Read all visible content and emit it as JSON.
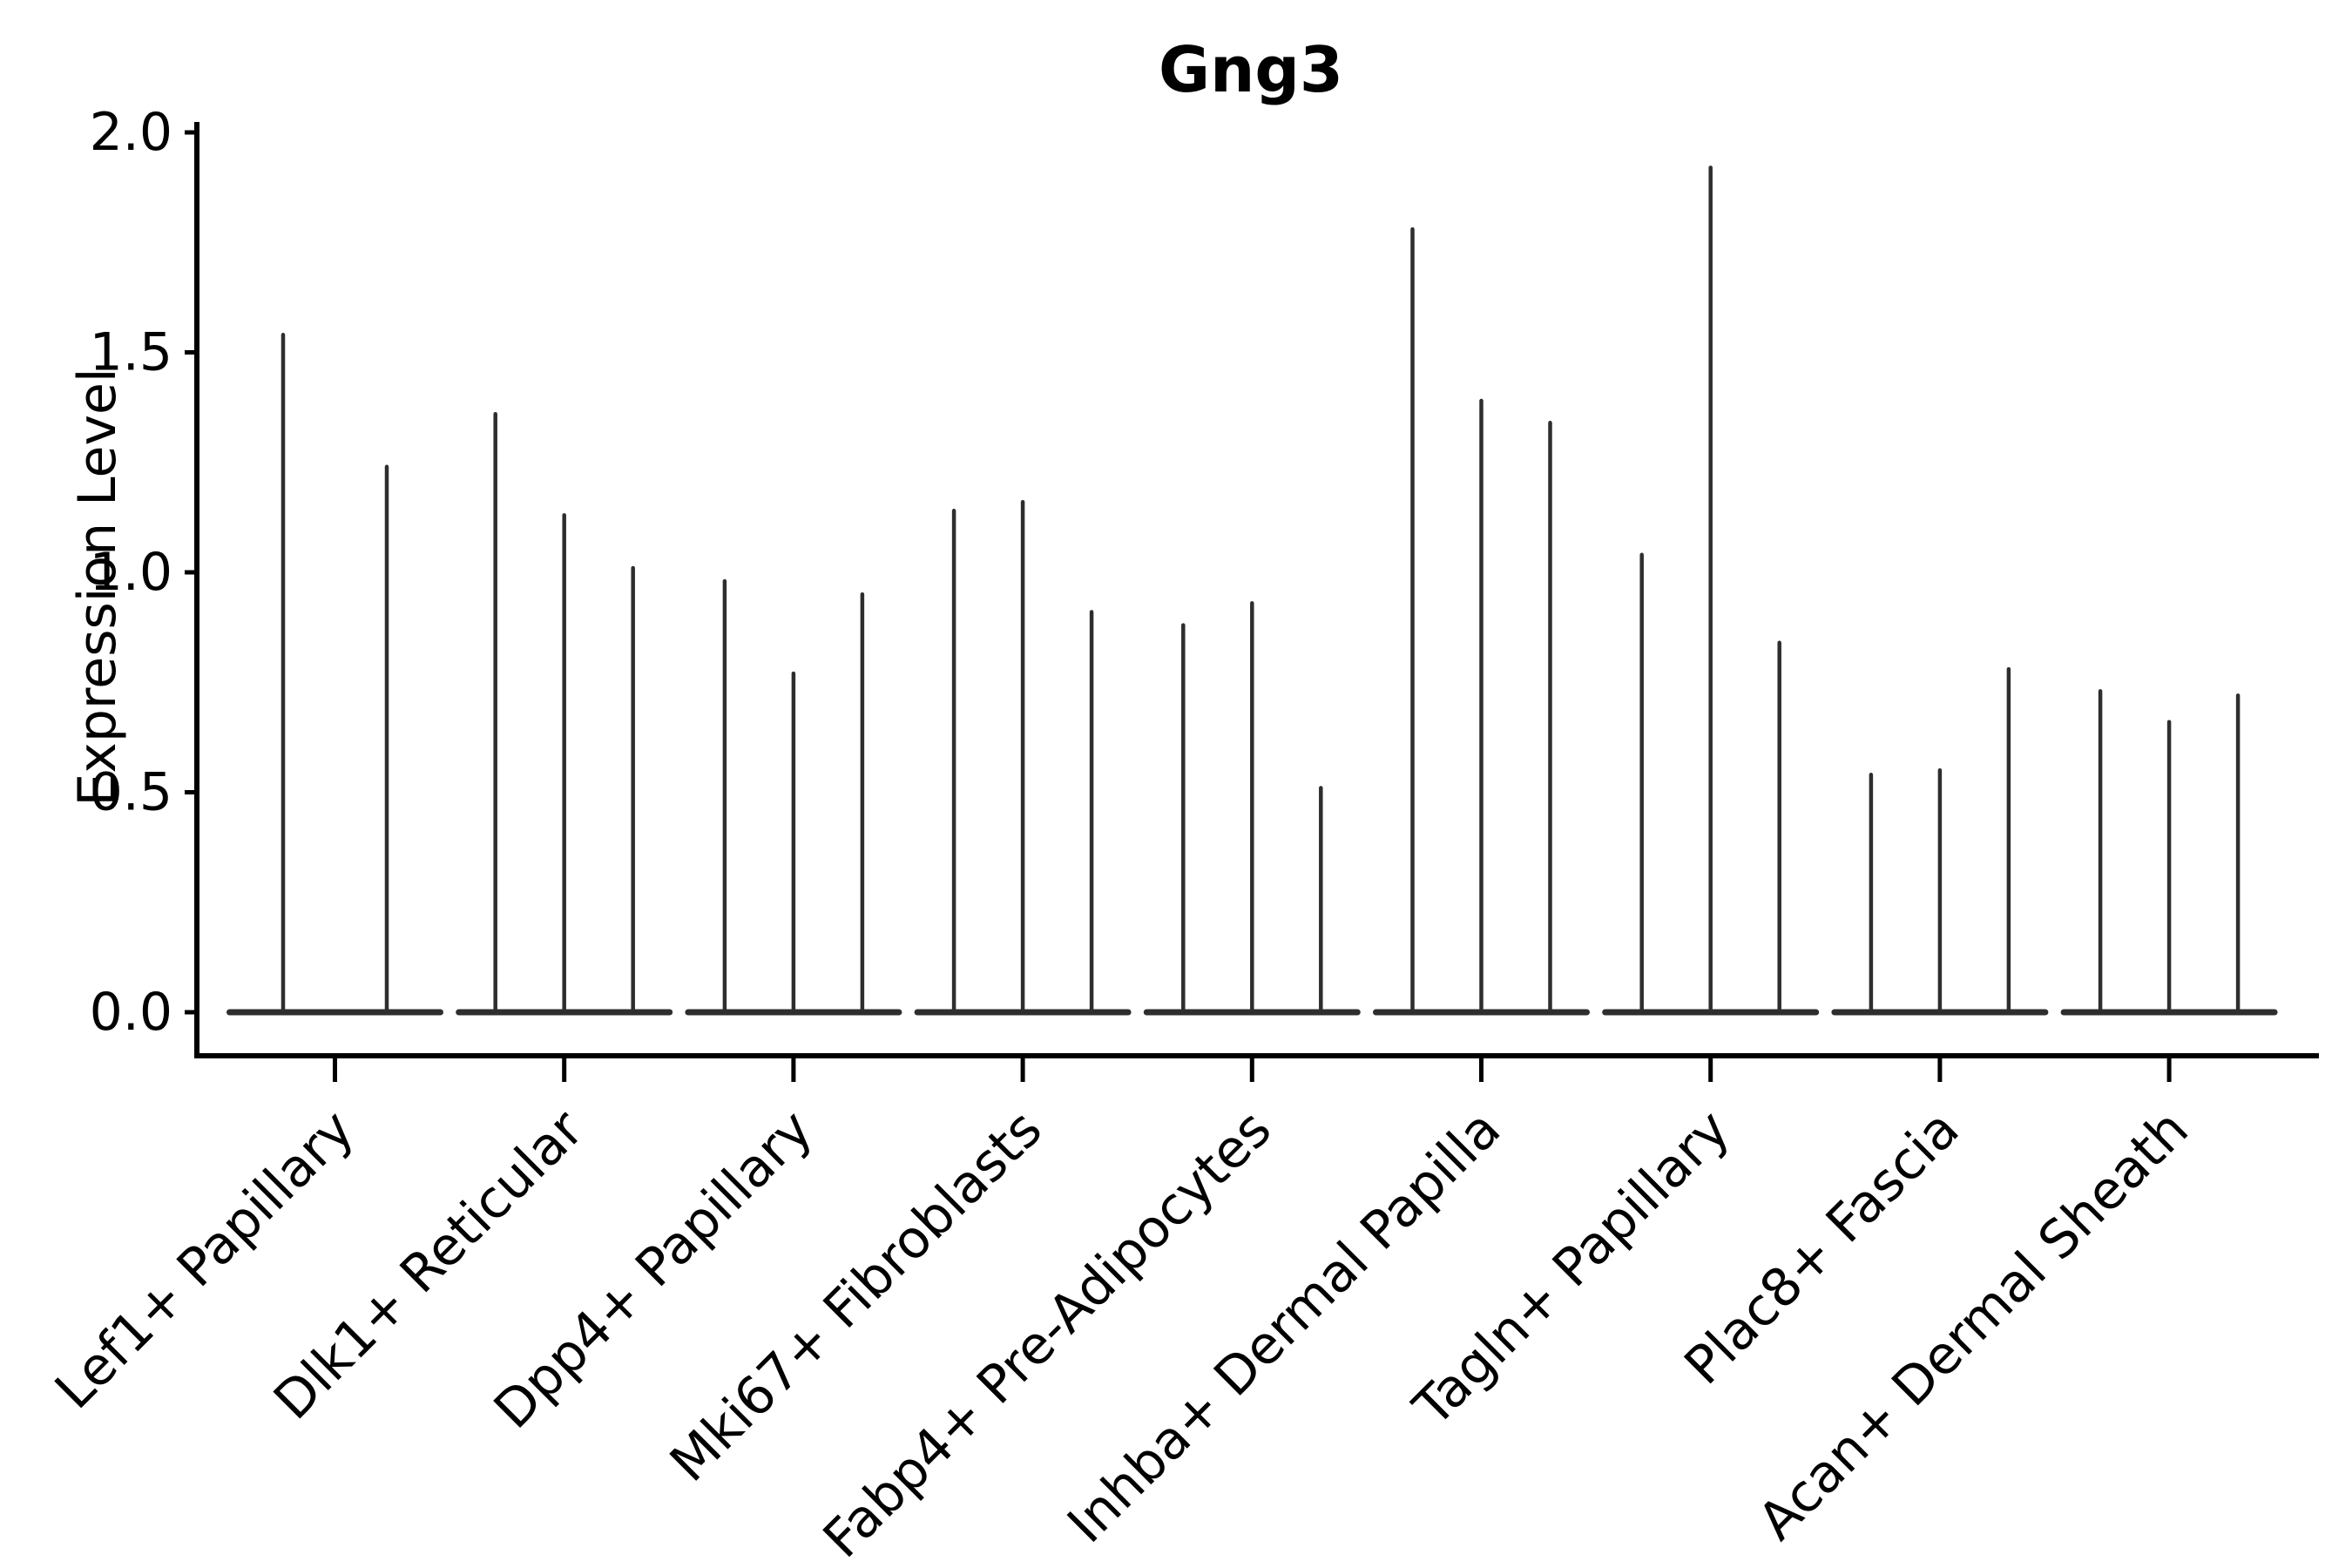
{
  "page": {
    "background": "#ffffff"
  },
  "chart_data": {
    "type": "violin",
    "title": "Gng3",
    "ylabel": "Expression Level",
    "xlabel": "",
    "ylim": [
      -0.1,
      2.02
    ],
    "yticks": [
      2.0,
      1.5,
      1.0,
      0.5,
      0.0
    ],
    "ytick_labels": [
      "2.0",
      "1.5",
      "1.0",
      "0.5",
      "0.0"
    ],
    "grid": false,
    "legend_position": "none",
    "violin_color": "#2e2e2e",
    "axis_color": "#000000",
    "text_color": "#000000",
    "categories": [
      "Lef1+ Papillary",
      "Dlk1+ Reticular",
      "Dpp4+ Papillary",
      "Mki67+ Fibroblasts",
      "Fabp4+ Pre-Adipocytes",
      "Inhba+ Dermal Papilla",
      "Tagln+ Papillary",
      "Plac8+ Fascia",
      "Acan+ Dermal Sheath"
    ],
    "groups": [
      {
        "category": "Lef1+ Papillary",
        "violin_maxima": [
          1.54,
          1.24
        ]
      },
      {
        "category": "Dlk1+ Reticular",
        "violin_maxima": [
          1.36,
          1.13,
          1.01
        ]
      },
      {
        "category": "Dpp4+ Papillary",
        "violin_maxima": [
          0.98,
          0.77,
          0.95
        ]
      },
      {
        "category": "Mki67+ Fibroblasts",
        "violin_maxima": [
          1.14,
          1.16,
          0.91
        ]
      },
      {
        "category": "Fabp4+ Pre-Adipocytes",
        "violin_maxima": [
          0.88,
          0.93,
          0.51
        ]
      },
      {
        "category": "Inhba+ Dermal Papilla",
        "violin_maxima": [
          1.78,
          1.39,
          1.34
        ]
      },
      {
        "category": "Tagln+ Papillary",
        "violin_maxima": [
          1.04,
          1.92,
          0.84
        ]
      },
      {
        "category": "Plac8+ Fascia",
        "violin_maxima": [
          0.54,
          0.55,
          0.78
        ]
      },
      {
        "category": "Acan+ Dermal Sheath",
        "violin_maxima": [
          0.73,
          0.66,
          0.72
        ]
      }
    ]
  }
}
